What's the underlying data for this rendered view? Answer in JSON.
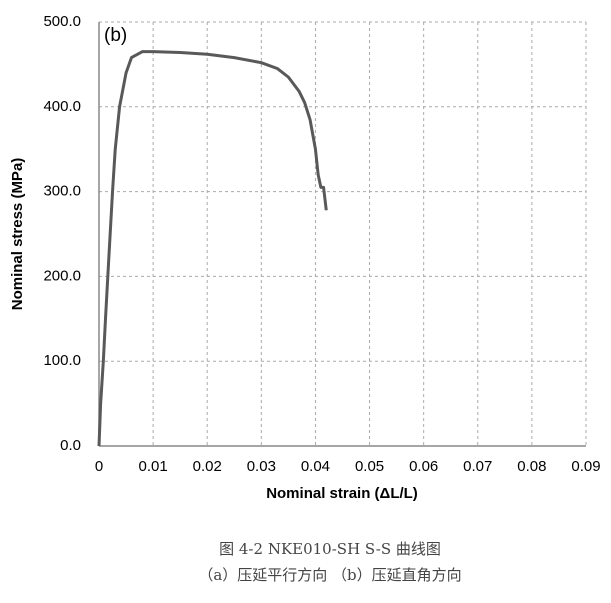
{
  "chart_data": {
    "type": "line",
    "annotation": "(b)",
    "xlabel": "Nominal strain (ΔL/L)",
    "ylabel": "Nominal stress (MPa)",
    "x": [
      0,
      0.0003,
      0.0008,
      0.0012,
      0.0018,
      0.0025,
      0.003,
      0.0038,
      0.005,
      0.006,
      0.008,
      0.01,
      0.015,
      0.02,
      0.025,
      0.03,
      0.033,
      0.035,
      0.037,
      0.038,
      0.039,
      0.04,
      0.0405,
      0.041,
      0.0415,
      0.042
    ],
    "values": [
      0,
      50,
      100,
      150,
      220,
      300,
      350,
      400,
      440,
      458,
      465,
      465,
      464,
      462,
      458,
      452,
      445,
      435,
      418,
      405,
      385,
      350,
      320,
      305,
      305,
      278
    ],
    "color": "#595959",
    "xlim": [
      0,
      0.09
    ],
    "xticks": [
      0,
      0.01,
      0.02,
      0.03,
      0.04,
      0.05,
      0.06,
      0.07,
      0.08,
      0.09
    ],
    "ylim": [
      0,
      500
    ],
    "yticks": [
      {
        "value": 0,
        "label": "0.0"
      },
      {
        "value": 100,
        "label": "100.0"
      },
      {
        "value": 200,
        "label": "200.0"
      },
      {
        "value": 300,
        "label": "300.0"
      },
      {
        "value": 400,
        "label": "400.0"
      },
      {
        "value": 500,
        "label": "500.0"
      }
    ],
    "grid": true
  },
  "caption": [
    "图 4-2  NKE010-SH S-S 曲线图",
    "（a）压延平行方向    （b）压延直角方向"
  ]
}
